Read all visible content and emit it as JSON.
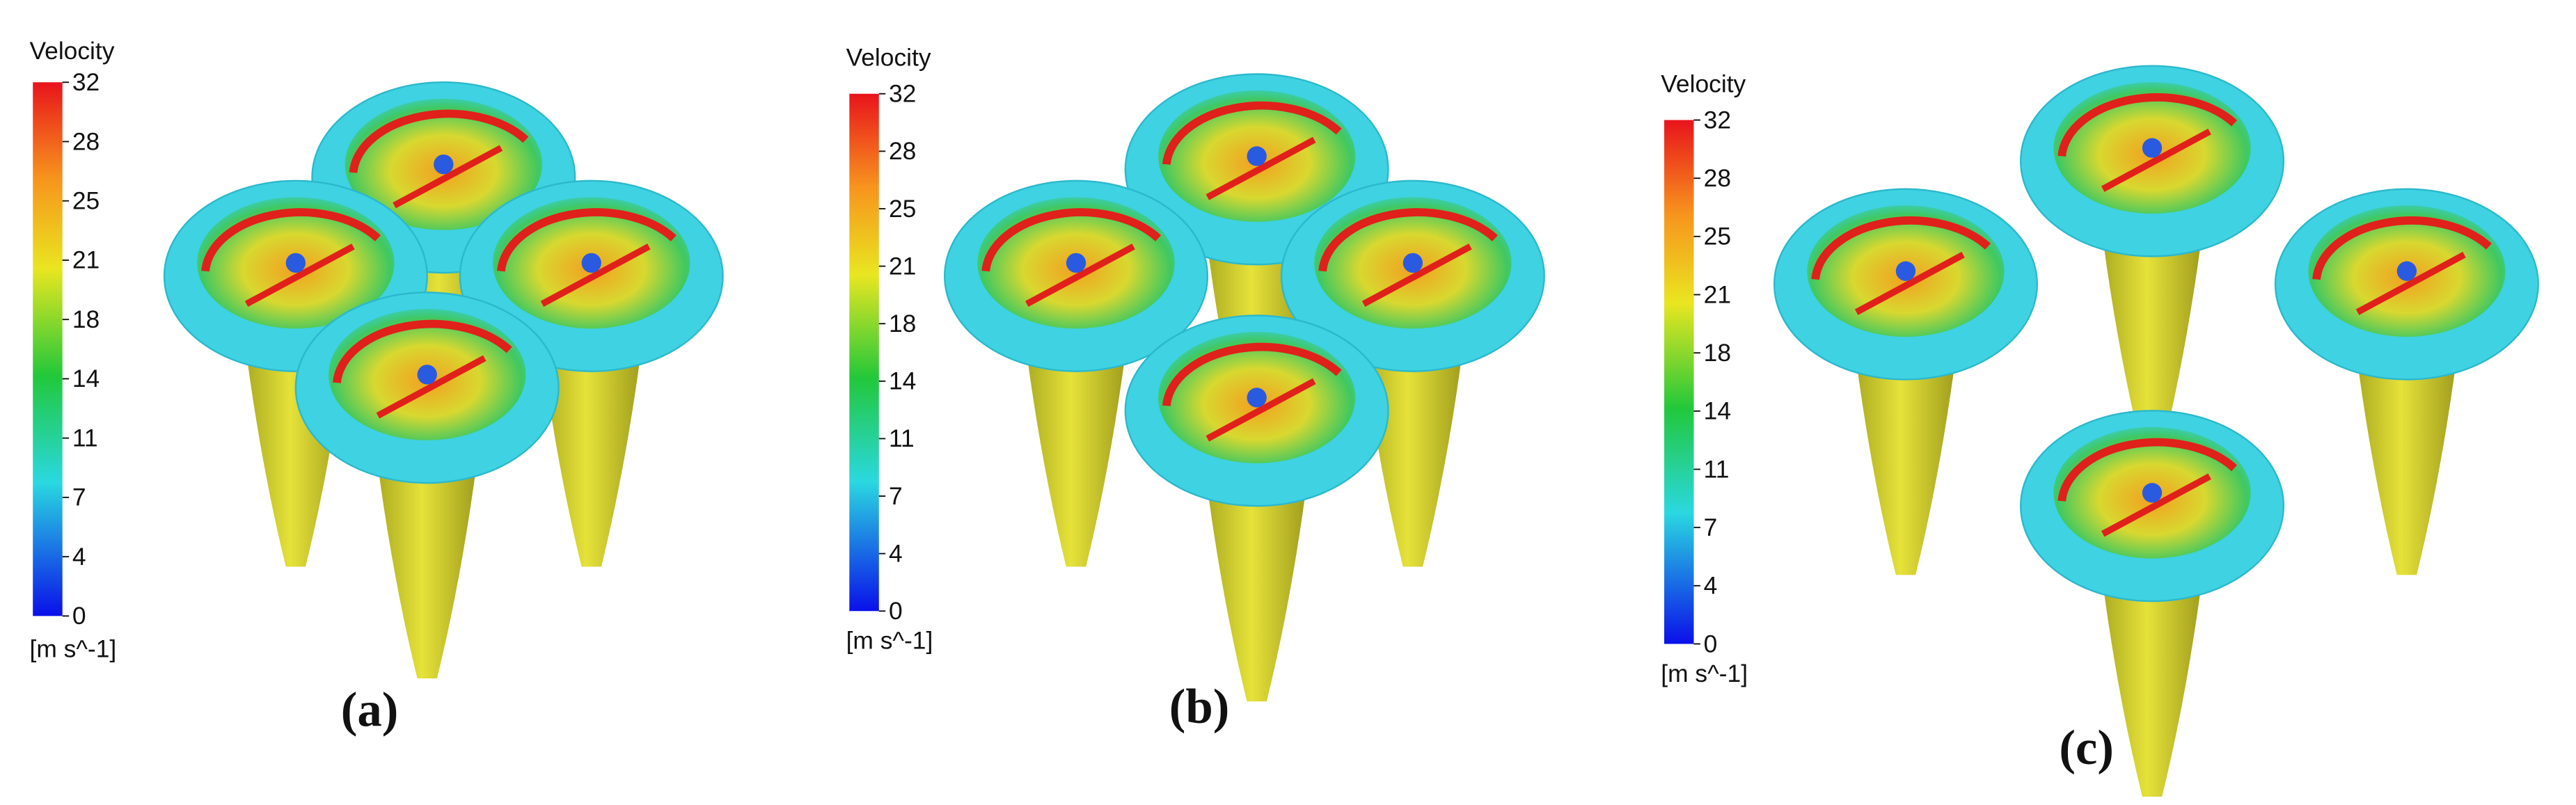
{
  "panels": [
    {
      "caption": "(a)",
      "legend": {
        "title": "Velocity",
        "ticks": [
          32,
          28,
          25,
          21,
          18,
          14,
          11,
          7,
          4,
          0
        ],
        "unit": "[m s^-1]"
      }
    },
    {
      "caption": "(b)",
      "legend": {
        "title": "Velocity",
        "ticks": [
          32,
          28,
          25,
          21,
          18,
          14,
          11,
          7,
          4,
          0
        ],
        "unit": "[m s^-1]"
      }
    },
    {
      "caption": "(c)",
      "legend": {
        "title": "Velocity",
        "ticks": [
          32,
          28,
          25,
          21,
          18,
          14,
          11,
          7,
          4,
          0
        ],
        "unit": "[m s^-1]"
      }
    }
  ]
}
